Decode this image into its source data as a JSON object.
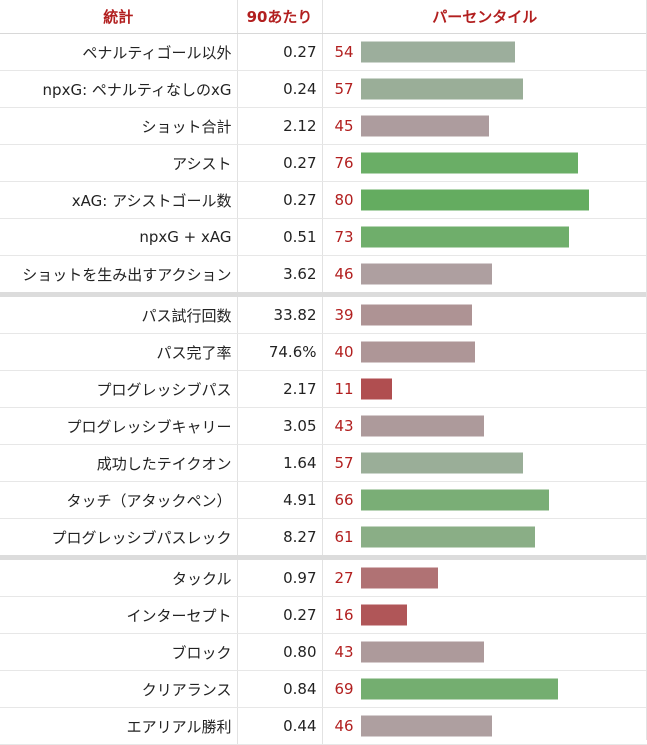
{
  "headers": {
    "stat": "統計",
    "per90": "90あたり",
    "percentile": "パーセンタイル"
  },
  "groups": [
    {
      "rows": [
        {
          "stat": "ペナルティゴール以外",
          "per90": "0.27",
          "pct": 54,
          "color": "#9cae9c"
        },
        {
          "stat": "npxG: ペナルティなしのxG",
          "per90": "0.24",
          "pct": 57,
          "color": "#9aae98"
        },
        {
          "stat": "ショット合計",
          "per90": "2.12",
          "pct": 45,
          "color": "#ad9c9e"
        },
        {
          "stat": "アシスト",
          "per90": "0.27",
          "pct": 76,
          "color": "#6aae66"
        },
        {
          "stat": "xAG: アシストゴール数",
          "per90": "0.27",
          "pct": 80,
          "color": "#64ac60"
        },
        {
          "stat": "npxG + xAG",
          "per90": "0.51",
          "pct": 73,
          "color": "#6fae6b"
        },
        {
          "stat": "ショットを生み出すアクション",
          "per90": "3.62",
          "pct": 46,
          "color": "#ae9fa0"
        }
      ]
    },
    {
      "rows": [
        {
          "stat": "パス試行回数",
          "per90": "33.82",
          "pct": 39,
          "color": "#ae9394"
        },
        {
          "stat": "パス完了率",
          "per90": "74.6%",
          "pct": 40,
          "color": "#ae9697"
        },
        {
          "stat": "プログレッシブパス",
          "per90": "2.17",
          "pct": 11,
          "color": "#b04e50"
        },
        {
          "stat": "プログレッシブキャリー",
          "per90": "3.05",
          "pct": 43,
          "color": "#ad9a9b"
        },
        {
          "stat": "成功したテイクオン",
          "per90": "1.64",
          "pct": 57,
          "color": "#9aae98"
        },
        {
          "stat": "タッチ（アタックペン）",
          "per90": "4.91",
          "pct": 66,
          "color": "#7aae76"
        },
        {
          "stat": "プログレッシブパスレック",
          "per90": "8.27",
          "pct": 61,
          "color": "#8aae86"
        }
      ]
    },
    {
      "rows": [
        {
          "stat": "タックル",
          "per90": "0.97",
          "pct": 27,
          "color": "#b07274"
        },
        {
          "stat": "インターセプト",
          "per90": "0.27",
          "pct": 16,
          "color": "#b05658"
        },
        {
          "stat": "ブロック",
          "per90": "0.80",
          "pct": 43,
          "color": "#ad9a9b"
        },
        {
          "stat": "クリアランス",
          "per90": "0.84",
          "pct": 69,
          "color": "#74ae70"
        },
        {
          "stat": "エアリアル勝利",
          "per90": "0.44",
          "pct": 46,
          "color": "#ae9fa0"
        }
      ]
    }
  ]
}
